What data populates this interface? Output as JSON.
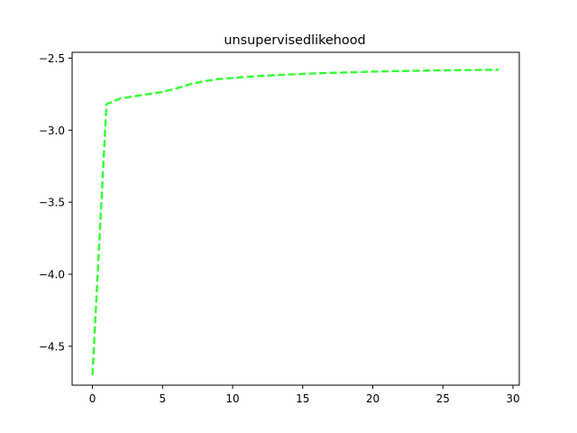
{
  "chart_data": {
    "type": "line",
    "title": "unsupervisedlikehood",
    "xlabel": "",
    "ylabel": "",
    "xlim": [
      -1.45,
      30.45
    ],
    "ylim": [
      -4.77,
      -2.46
    ],
    "xticks": [
      0,
      5,
      10,
      15,
      20,
      25,
      30
    ],
    "yticks": [
      -4.5,
      -4.0,
      -3.5,
      -3.0,
      -2.5
    ],
    "xtick_labels": [
      "0",
      "5",
      "10",
      "15",
      "20",
      "25",
      "30"
    ],
    "ytick_labels": [
      "−4.5",
      "−4.0",
      "−3.5",
      "−3.0",
      "−2.5"
    ],
    "grid": false,
    "series": [
      {
        "color": "#33ff33",
        "linestyle": "dashed",
        "x": [
          0,
          1,
          2,
          3,
          4,
          5,
          6,
          7,
          8,
          9,
          10,
          11,
          12,
          13,
          14,
          15,
          16,
          17,
          18,
          19,
          20,
          21,
          22,
          23,
          24,
          25,
          26,
          27,
          28,
          29
        ],
        "y": [
          -4.7,
          -2.82,
          -2.78,
          -2.765,
          -2.75,
          -2.735,
          -2.71,
          -2.68,
          -2.66,
          -2.645,
          -2.638,
          -2.63,
          -2.624,
          -2.619,
          -2.614,
          -2.61,
          -2.606,
          -2.603,
          -2.6,
          -2.597,
          -2.594,
          -2.592,
          -2.59,
          -2.588,
          -2.586,
          -2.585,
          -2.584,
          -2.583,
          -2.582,
          -2.581
        ]
      }
    ]
  }
}
